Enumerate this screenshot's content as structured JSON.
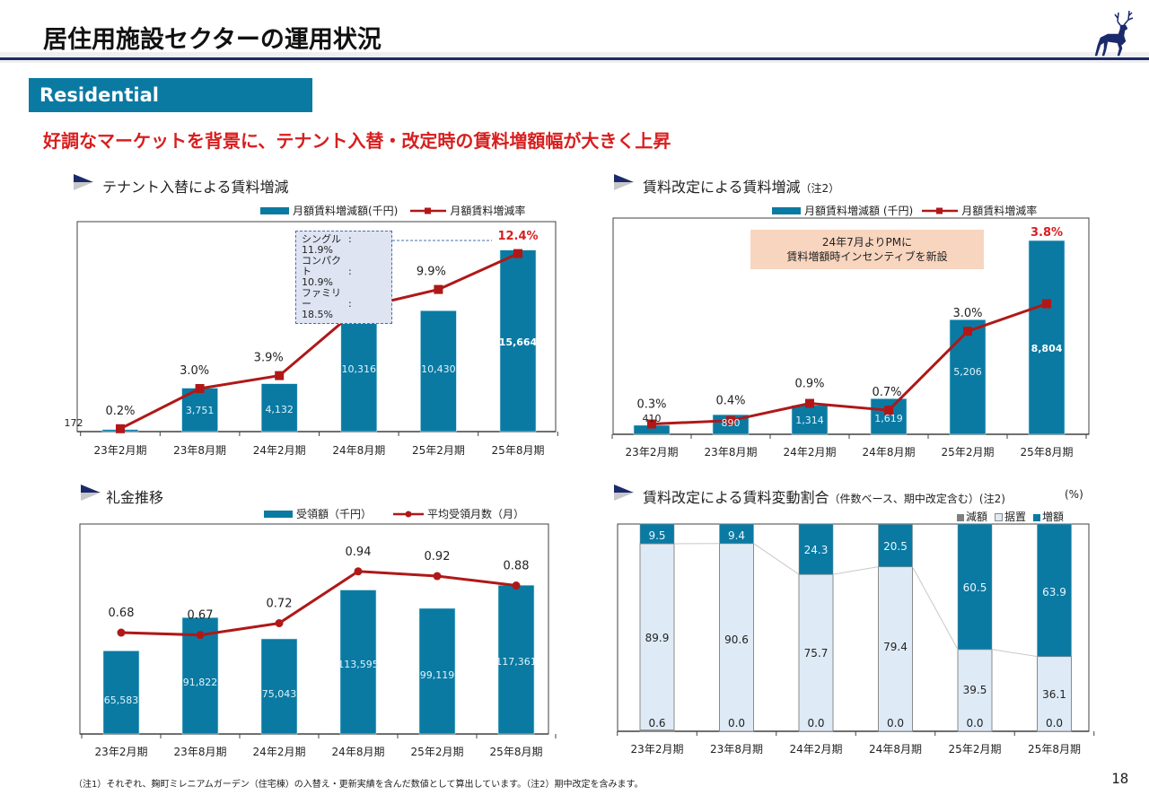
{
  "header": {
    "title": "居住用施設セクターの運用状況",
    "logo_icon": "stag-logo-icon",
    "section_tag": "Residential",
    "headline": "好調なマーケットを背景に、テナント入替・改定時の賃料増額幅が大きく上昇"
  },
  "colors": {
    "bar": "#0a7aa3",
    "line": "#b01818",
    "highlight_label": "#d81e1e",
    "hold": "#deeaf5",
    "decrease": "#7f7f7f",
    "navy": "#1b2a6b"
  },
  "footnote": "（注1）それぞれ、麹町ミレニアムガーデン（住宅棟）の入替え・更新実績を含んだ数値として算出しています。（注2）期中改定を含みます。",
  "page_number": "18",
  "chart_data": [
    {
      "id": "tenant-replacement",
      "type": "bar",
      "title": "テナント入替による賃料増減",
      "title_note": "",
      "categories": [
        "23年2月期",
        "23年8月期",
        "24年2月期",
        "24年8月期",
        "25年2月期",
        "25年8月期"
      ],
      "series": [
        {
          "name": "月額賃料増減額(千円)",
          "kind": "bar",
          "values": [
            172,
            3751,
            4132,
            10316,
            10430,
            15664
          ],
          "labels": [
            "172",
            "3,751",
            "4,132",
            "10,316",
            "10,430",
            "15,664"
          ]
        },
        {
          "name": "月額賃料増減率",
          "kind": "line",
          "marker": "square",
          "values": [
            0.2,
            3.0,
            3.9,
            8.6,
            9.9,
            12.4
          ],
          "labels": [
            "0.2%",
            "3.0%",
            "3.9%",
            "8.6%",
            "9.9%",
            "12.4%"
          ]
        }
      ],
      "bar_ylim": [
        0,
        17500
      ],
      "line_ylim": [
        0,
        13.5
      ],
      "legend": [
        "月額賃料増減額(千円)",
        "月額賃料増減率"
      ],
      "legend_position": "top-right",
      "callout": {
        "lines": [
          {
            "label": "シングル",
            "value": "11.9%"
          },
          {
            "label": "コンパクト",
            "value": "10.9%"
          },
          {
            "label": "ファミリー",
            "value": "18.5%"
          }
        ]
      }
    },
    {
      "id": "rent-revision",
      "type": "bar",
      "title": "賃料改定による賃料増減",
      "title_note": "（注2）",
      "categories": [
        "23年2月期",
        "23年8月期",
        "24年2月期",
        "24年8月期",
        "25年2月期",
        "25年8月期"
      ],
      "series": [
        {
          "name": "月額賃料増減額 (千円)",
          "kind": "bar",
          "values": [
            410,
            890,
            1314,
            1619,
            5206,
            8804
          ],
          "labels": [
            "410",
            "890",
            "1,314",
            "1,619",
            "5,206",
            "8,804"
          ]
        },
        {
          "name": "月額賃料増減率",
          "kind": "line",
          "marker": "square",
          "values": [
            0.3,
            0.4,
            0.9,
            0.7,
            3.0,
            3.8
          ],
          "labels": [
            "0.3%",
            "0.4%",
            "0.9%",
            "0.7%",
            "3.0%",
            "3.8%"
          ]
        }
      ],
      "bar_ylim": [
        0,
        9500
      ],
      "line_ylim": [
        0,
        5.8
      ],
      "legend": [
        "月額賃料増減額 (千円)",
        "月額賃料増減率"
      ],
      "legend_position": "top-right",
      "annotation": [
        "24年7月よりPMに",
        "賃料増額時インセンティブを新設"
      ]
    },
    {
      "id": "key-money",
      "type": "bar",
      "title": "礼金推移",
      "title_note": "",
      "categories": [
        "23年2月期",
        "23年8月期",
        "24年2月期",
        "24年8月期",
        "25年2月期",
        "25年8月期"
      ],
      "series": [
        {
          "name": "受領額（千円）",
          "kind": "bar",
          "values": [
            65583,
            91822,
            75043,
            113595,
            99119,
            117361
          ],
          "labels": [
            "65,583",
            "91,822",
            "75,043",
            "113,595",
            "99,119",
            "117,361"
          ]
        },
        {
          "name": "平均受領月数（月）",
          "kind": "line",
          "marker": "circle",
          "values": [
            0.68,
            0.67,
            0.72,
            0.94,
            0.92,
            0.88
          ],
          "labels": [
            "0.68",
            "0.67",
            "0.72",
            "0.94",
            "0.92",
            "0.88"
          ]
        }
      ],
      "bar_ylim": [
        0,
        160000
      ],
      "line_ylim": [
        0.25,
        1.08
      ],
      "legend": [
        "受領額（千円）",
        "平均受領月数（月）"
      ],
      "legend_position": "top-right"
    },
    {
      "id": "revision-ratio",
      "type": "bar",
      "stacked": true,
      "title": "賃料改定による賃料変動割合",
      "title_note": "（件数ベース、期中改定含む）(注2)",
      "unit": "(%)",
      "categories": [
        "23年2月期",
        "23年8月期",
        "24年2月期",
        "24年8月期",
        "25年2月期",
        "25年8月期"
      ],
      "series": [
        {
          "name": "減額",
          "values": [
            0.6,
            0.0,
            0.0,
            0.0,
            0.0,
            0.0
          ],
          "labels": [
            "0.6",
            "0.0",
            "0.0",
            "0.0",
            "0.0",
            "0.0"
          ]
        },
        {
          "name": "据置",
          "values": [
            89.9,
            90.6,
            75.7,
            79.4,
            39.5,
            36.1
          ],
          "labels": [
            "89.9",
            "90.6",
            "75.7",
            "79.4",
            "39.5",
            "36.1"
          ]
        },
        {
          "name": "増額",
          "values": [
            9.5,
            9.4,
            24.3,
            20.5,
            60.5,
            63.9
          ],
          "labels": [
            "9.5",
            "9.4",
            "24.3",
            "20.5",
            "60.5",
            "63.9"
          ]
        }
      ],
      "ylim": [
        0,
        100
      ],
      "legend": [
        "減額",
        "据置",
        "増額"
      ],
      "legend_position": "top-right"
    }
  ]
}
